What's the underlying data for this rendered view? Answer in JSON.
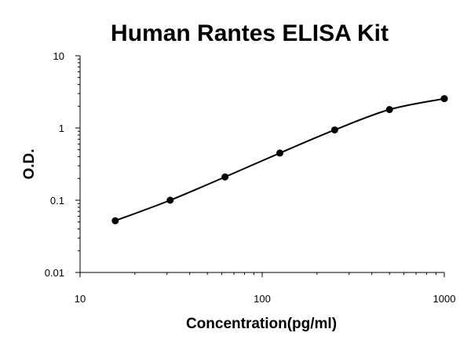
{
  "chart_data": {
    "type": "scatter",
    "title": "Human Rantes ELISA Kit",
    "xlabel": "Concentration(pg/ml)",
    "ylabel": "O.D.",
    "x_scale": "log",
    "y_scale": "log",
    "xlim": [
      10,
      1000
    ],
    "ylim": [
      0.01,
      10
    ],
    "x_ticks": [
      "10",
      "100",
      "1000"
    ],
    "y_ticks": [
      "10",
      "1",
      "0.1",
      "0.01"
    ],
    "grid": false,
    "legend": "none",
    "series": [
      {
        "x": [
          15.6,
          31.25,
          62.5,
          125,
          250,
          500,
          1000
        ],
        "y": [
          0.052,
          0.1,
          0.21,
          0.45,
          0.94,
          1.8,
          2.55
        ],
        "marker": "circle",
        "fit_line": "smooth"
      }
    ],
    "colors": {
      "line": "#000000",
      "marker": "#000000",
      "axis": "#000000"
    }
  }
}
